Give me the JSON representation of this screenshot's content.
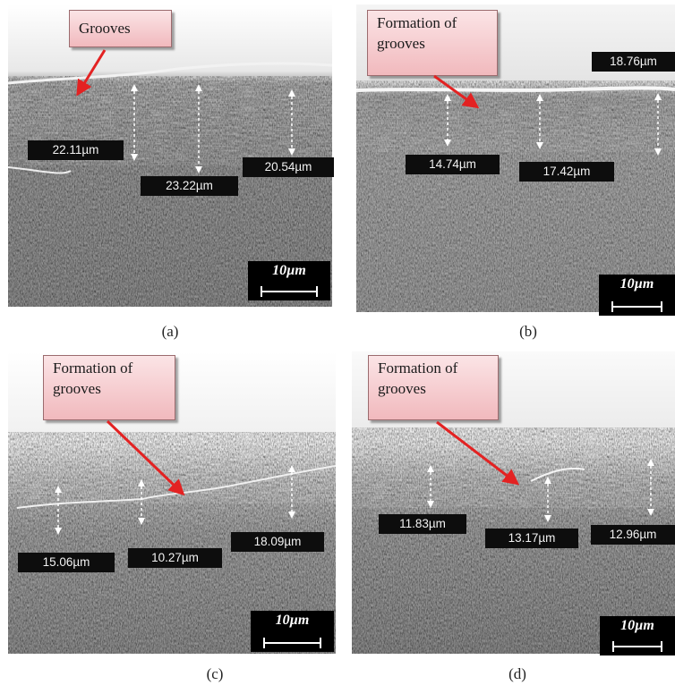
{
  "panels": [
    {
      "caption": "(a)",
      "callout": "Grooves",
      "measurements": [
        "22.11µm",
        "23.22µm",
        "20.54µm"
      ],
      "scale_bar": "10µm"
    },
    {
      "caption": "(b)",
      "callout": "Formation of grooves",
      "measurements": [
        "18.76µm",
        "14.74µm",
        "17.42µm"
      ],
      "scale_bar": "10µm"
    },
    {
      "caption": "(c)",
      "callout": "Formation of grooves",
      "measurements": [
        "15.06µm",
        "10.27µm",
        "18.09µm"
      ],
      "scale_bar": "10µm"
    },
    {
      "caption": "(d)",
      "callout": "Formation of grooves",
      "measurements": [
        "11.83µm",
        "13.17µm",
        "12.96µm"
      ],
      "scale_bar": "10µm"
    }
  ],
  "colors": {
    "arrow": "#e32222",
    "label_background": "#0d0d0d",
    "callout_fill": "#f4c6c9",
    "scale_bar_background": "#000000"
  }
}
